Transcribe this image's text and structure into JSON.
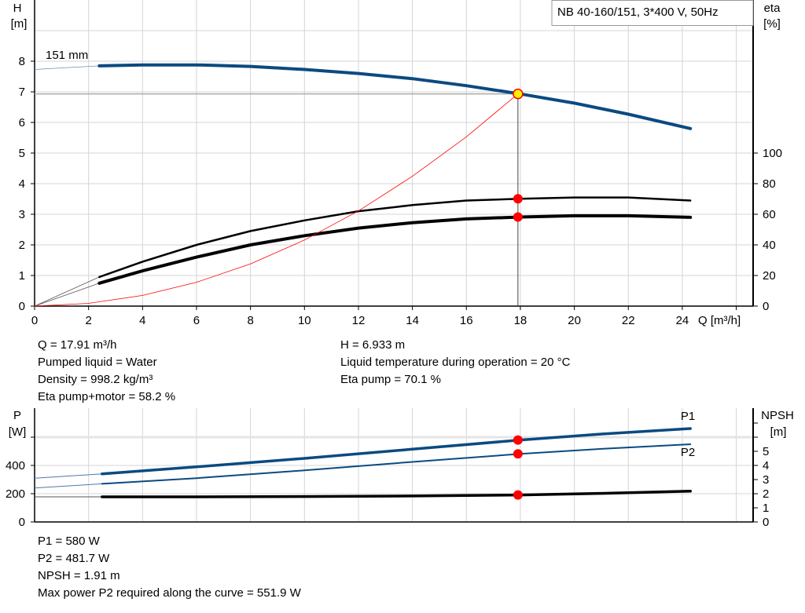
{
  "chart_data": [
    {
      "type": "line",
      "legend_box": "NB 40-160/151, 3*400 V, 50Hz",
      "xlabel": "Q [m³/h]",
      "ylabel_left": [
        "H",
        "[m]"
      ],
      "ylabel_right": [
        "eta",
        "[%]"
      ],
      "xlim": [
        0,
        26.6
      ],
      "ylim_left": [
        0,
        10
      ],
      "ylim_right": [
        0,
        200
      ],
      "x_ticks": [
        0,
        2,
        4,
        6,
        8,
        10,
        12,
        14,
        16,
        18,
        20,
        22,
        24
      ],
      "y_ticks_left": [
        0,
        1,
        2,
        3,
        4,
        5,
        6,
        7,
        8
      ],
      "y_ticks_right": [
        0,
        20,
        40,
        60,
        80,
        100
      ],
      "grid": true,
      "curve_label": "151 mm",
      "series": [
        {
          "key": "head",
          "axis": "left",
          "color": "#0b4a80",
          "x": [
            0,
            2.4,
            4,
            6,
            8,
            10,
            12,
            14,
            16,
            18,
            20,
            22,
            24.3
          ],
          "y": [
            7.73,
            7.85,
            7.88,
            7.88,
            7.83,
            7.73,
            7.6,
            7.43,
            7.2,
            6.93,
            6.63,
            6.27,
            5.8
          ]
        },
        {
          "key": "eta_pump",
          "axis": "right",
          "color": "#000000",
          "x": [
            0,
            2.4,
            4,
            6,
            8,
            10,
            12,
            14,
            16,
            18,
            20,
            22,
            24.3
          ],
          "y": [
            0,
            19,
            29,
            40,
            49,
            56,
            62,
            66,
            69,
            70.1,
            71,
            71,
            69
          ]
        },
        {
          "key": "eta_pump_motor",
          "axis": "right",
          "color": "#000000",
          "x": [
            0,
            2.4,
            4,
            6,
            8,
            10,
            12,
            14,
            16,
            18,
            20,
            22,
            24.3
          ],
          "y": [
            0,
            15,
            23,
            32,
            40,
            46,
            51,
            54.5,
            57,
            58.2,
            59,
            59,
            58
          ]
        },
        {
          "key": "system_curve",
          "axis": "left",
          "color": "#ff0000",
          "x": [
            0,
            2,
            4,
            6,
            8,
            10,
            12,
            14,
            16,
            17.91
          ],
          "y": [
            0,
            0.09,
            0.35,
            0.78,
            1.38,
            2.16,
            3.11,
            4.24,
            5.53,
            6.933
          ]
        }
      ],
      "operating_point": {
        "Q": 17.91,
        "H": 6.933,
        "eta_pump": 70.1,
        "eta_pump_motor": 58.2
      }
    },
    {
      "type": "line",
      "ylabel_left": [
        "P",
        "[W]"
      ],
      "ylabel_right": [
        "NPSH",
        "[m]"
      ],
      "xlim": [
        0,
        26.6
      ],
      "ylim_left": [
        0,
        800
      ],
      "ylim_right": [
        0,
        8
      ],
      "y_ticks_left": [
        0,
        200,
        400
      ],
      "y_ticks_right": [
        0,
        1,
        2,
        3,
        4,
        5
      ],
      "grid": true,
      "series": [
        {
          "name": "P1",
          "axis": "left",
          "color": "#0b4a80",
          "x": [
            0,
            2.5,
            6,
            10,
            14,
            18,
            21,
            24.3
          ],
          "y": [
            310,
            340,
            390,
            450,
            515,
            580,
            622,
            661
          ]
        },
        {
          "name": "P2",
          "axis": "left",
          "color": "#0b4a80",
          "x": [
            0,
            2.5,
            6,
            10,
            14,
            18,
            21,
            24.3
          ],
          "y": [
            240,
            270,
            310,
            365,
            425,
            481.7,
            517,
            550
          ]
        },
        {
          "key": "npsh",
          "axis": "right",
          "color": "#000000",
          "x": [
            0,
            2.5,
            6,
            10,
            14,
            18,
            21,
            24.3
          ],
          "y": [
            1.78,
            1.78,
            1.78,
            1.8,
            1.84,
            1.91,
            2.02,
            2.18
          ]
        }
      ],
      "operating_point": {
        "Q": 17.91,
        "P1": 580,
        "P2": 481.7,
        "NPSH": 1.91
      }
    }
  ],
  "info_top": {
    "left": [
      "Q = 17.91 m³/h",
      "Pumped liquid = Water",
      "Density = 998.2 kg/m³",
      "Eta pump+motor = 58.2 %"
    ],
    "right": [
      "H = 6.933 m",
      "Liquid temperature during operation = 20 °C",
      "Eta pump = 70.1 %"
    ]
  },
  "info_bottom": [
    "P1 = 580 W",
    "P2 = 481.7 W",
    "NPSH = 1.91 m",
    "Max power P2 required along the curve = 551.9 W"
  ]
}
